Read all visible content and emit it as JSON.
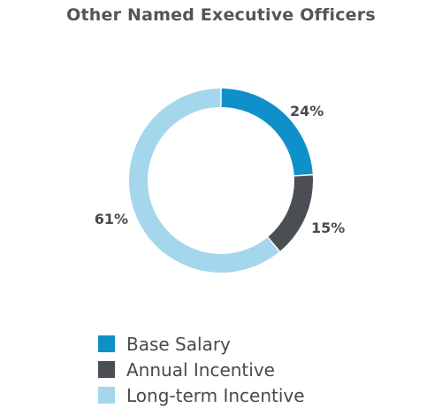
{
  "colors": {
    "base_salary": "#0f90c9",
    "annual_incentive": "#4b4f54",
    "long_term_incentive": "#a4d6ec",
    "text": "#4a4a4a"
  },
  "chart_data": {
    "type": "pie",
    "variant": "donut",
    "title": "Other Named Executive Officers",
    "legend_position": "bottom-left",
    "slices": [
      {
        "label": "Base Salary",
        "value": 24,
        "value_label": "24%",
        "color": "#0f90c9"
      },
      {
        "label": "Annual Incentive",
        "value": 15,
        "value_label": "15%",
        "color": "#4b4f54"
      },
      {
        "label": "Long-term Incentive",
        "value": 61,
        "value_label": "61%",
        "color": "#a4d6ec"
      }
    ]
  }
}
